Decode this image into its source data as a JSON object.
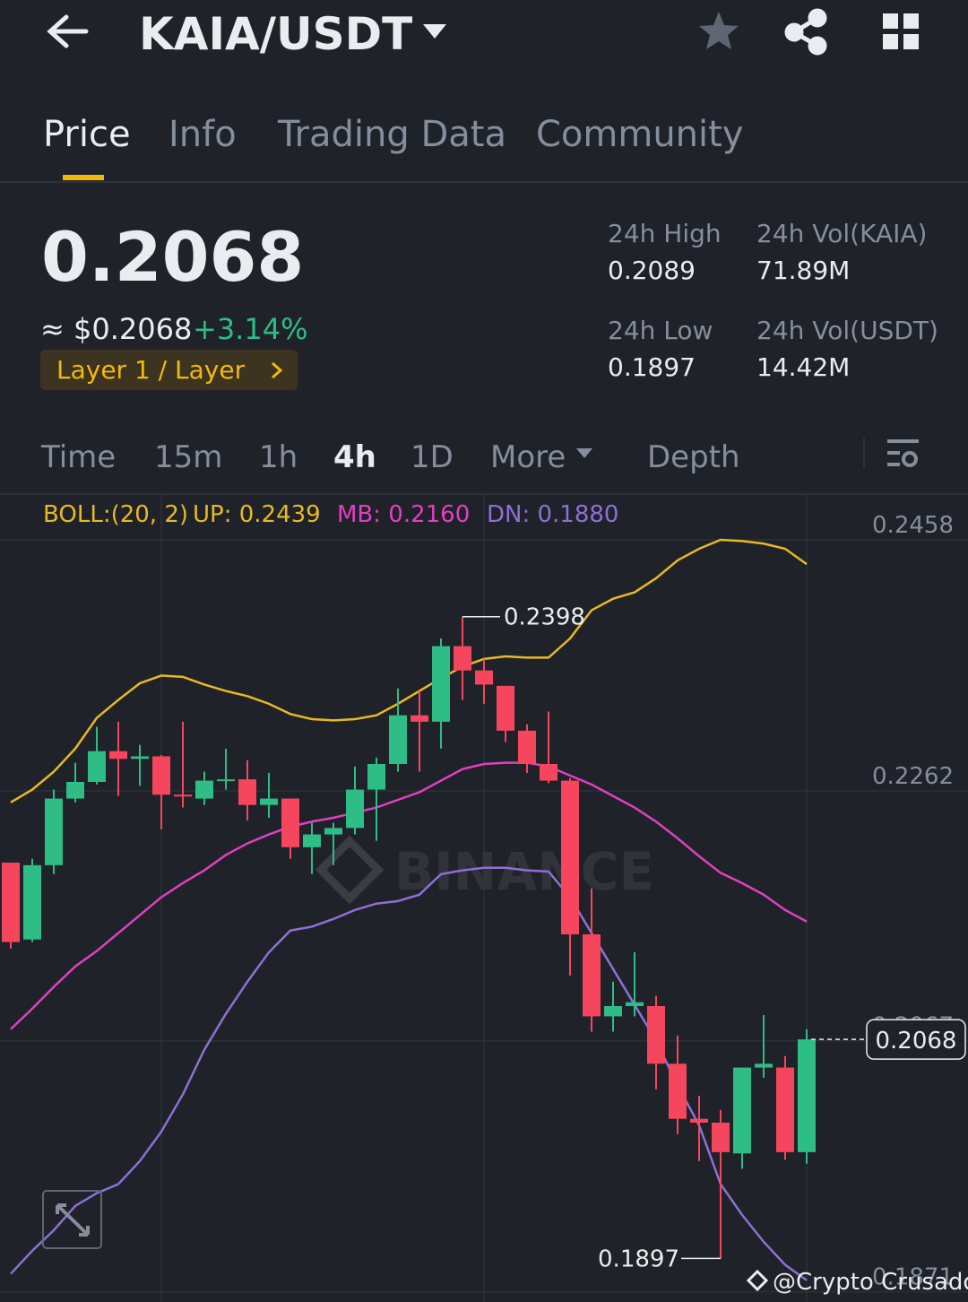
{
  "header": {
    "pair": "KAIA/USDT"
  },
  "tabs": [
    "Price",
    "Info",
    "Trading Data",
    "Community"
  ],
  "price": {
    "last": "0.2068",
    "usd": "≈ $0.2068",
    "change": "+3.14%",
    "tag": "Layer 1 / Layer"
  },
  "stats": [
    {
      "label": "24h High",
      "value": "0.2089"
    },
    {
      "label": "24h Vol(KAIA)",
      "value": "71.89M"
    },
    {
      "label": "24h Low",
      "value": "0.1897"
    },
    {
      "label": "24h Vol(USDT)",
      "value": "14.42M"
    }
  ],
  "intervals": [
    "Time",
    "15m",
    "1h",
    "4h",
    "1D",
    "More",
    "Depth"
  ],
  "indicator": {
    "name": "BOLL:(20, 2)",
    "up": "UP: 0.2439",
    "mb": "MB: 0.2160",
    "dn": "DN: 0.1880"
  },
  "chart_data": {
    "type": "candlestick",
    "ylim": [
      0.1863,
      0.2493
    ],
    "yticks": [
      0.2458,
      0.2262,
      0.2067,
      0.1871
    ],
    "up_color": "#2ebd85",
    "down_color": "#f6465d",
    "open": [
      0.2206,
      0.2146,
      0.2204,
      0.2256,
      0.2269,
      0.2293,
      0.2287,
      0.2289,
      0.2259,
      0.2256,
      0.227,
      0.2271,
      0.2251,
      0.2256,
      0.2218,
      0.2228,
      0.2233,
      0.2263,
      0.2283,
      0.2321,
      0.2316,
      0.2375,
      0.2356,
      0.2344,
      0.2309,
      0.2283,
      0.227,
      0.215,
      0.2086,
      0.2094,
      0.2094,
      0.2049,
      0.2006,
      0.2003,
      0.1979,
      0.2046,
      0.2046,
      0.198
    ],
    "high": [
      0.2206,
      0.2209,
      0.2263,
      0.2284,
      0.2312,
      0.2316,
      0.2298,
      0.229,
      0.2316,
      0.2277,
      0.2295,
      0.2286,
      0.2276,
      0.2256,
      0.2237,
      0.2237,
      0.2281,
      0.2288,
      0.2342,
      0.234,
      0.2381,
      0.2398,
      0.2365,
      0.2344,
      0.2314,
      0.2324,
      0.2272,
      0.2186,
      0.2113,
      0.2136,
      0.2102,
      0.2071,
      0.2024,
      0.2013,
      0.2046,
      0.2087,
      0.2055,
      0.2076
    ],
    "low": [
      0.2139,
      0.2144,
      0.2197,
      0.2253,
      0.2267,
      0.2258,
      0.2266,
      0.2232,
      0.2249,
      0.2251,
      0.2263,
      0.2239,
      0.2241,
      0.2209,
      0.2197,
      0.2204,
      0.2228,
      0.2223,
      0.2277,
      0.2277,
      0.2295,
      0.2333,
      0.233,
      0.23,
      0.2276,
      0.2268,
      0.2118,
      0.2074,
      0.2074,
      0.2086,
      0.2029,
      0.1994,
      0.1973,
      0.1897,
      0.1967,
      0.2038,
      0.1974,
      0.1971
    ],
    "close": [
      0.2144,
      0.2204,
      0.2256,
      0.2269,
      0.2293,
      0.2287,
      0.2289,
      0.2259,
      0.2258,
      0.227,
      0.2271,
      0.2251,
      0.2256,
      0.2218,
      0.2228,
      0.2233,
      0.2263,
      0.2283,
      0.2321,
      0.2316,
      0.2375,
      0.2356,
      0.2345,
      0.2309,
      0.2283,
      0.227,
      0.215,
      0.2086,
      0.2094,
      0.2097,
      0.2049,
      0.2006,
      0.2003,
      0.198,
      0.2046,
      0.2049,
      0.198,
      0.2068
    ],
    "lines": [
      {
        "name": "UP",
        "color": "#e8b923",
        "values": [
          0.2253,
          0.2263,
          0.2277,
          0.2295,
          0.2319,
          0.2333,
          0.2346,
          0.2352,
          0.2351,
          0.2345,
          0.234,
          0.2336,
          0.233,
          0.2322,
          0.2318,
          0.2317,
          0.2318,
          0.2321,
          0.233,
          0.234,
          0.235,
          0.2359,
          0.2365,
          0.2367,
          0.2366,
          0.2366,
          0.2381,
          0.2403,
          0.2412,
          0.2417,
          0.2428,
          0.2442,
          0.2451,
          0.2458,
          0.2457,
          0.2455,
          0.2451,
          0.2439
        ]
      },
      {
        "name": "MB",
        "color": "#e040c0",
        "values": [
          0.2076,
          0.2092,
          0.2109,
          0.2125,
          0.2137,
          0.2151,
          0.2165,
          0.2179,
          0.219,
          0.22,
          0.2212,
          0.2221,
          0.2228,
          0.2234,
          0.2238,
          0.2241,
          0.2245,
          0.2249,
          0.2255,
          0.2261,
          0.227,
          0.2279,
          0.2283,
          0.2284,
          0.2284,
          0.2281,
          0.2274,
          0.2267,
          0.2258,
          0.2249,
          0.2238,
          0.2225,
          0.2211,
          0.2198,
          0.219,
          0.2181,
          0.2169,
          0.216
        ]
      },
      {
        "name": "DN",
        "color": "#8f6fd6",
        "values": [
          0.1885,
          0.1903,
          0.1919,
          0.1938,
          0.1948,
          0.1955,
          0.1973,
          0.1996,
          0.2025,
          0.206,
          0.2088,
          0.2113,
          0.2136,
          0.2153,
          0.2156,
          0.2162,
          0.2169,
          0.2174,
          0.2176,
          0.2181,
          0.2197,
          0.22,
          0.2202,
          0.2202,
          0.22,
          0.2199,
          0.2179,
          0.2151,
          0.2123,
          0.2095,
          0.2067,
          0.2032,
          0.2001,
          0.1955,
          0.1931,
          0.191,
          0.1892,
          0.188
        ]
      }
    ],
    "max_label": 0.2398,
    "min_label": 0.1897,
    "current_price": 0.2068,
    "watermark": "BINANCE",
    "credit": "@Crypto Crusador"
  }
}
